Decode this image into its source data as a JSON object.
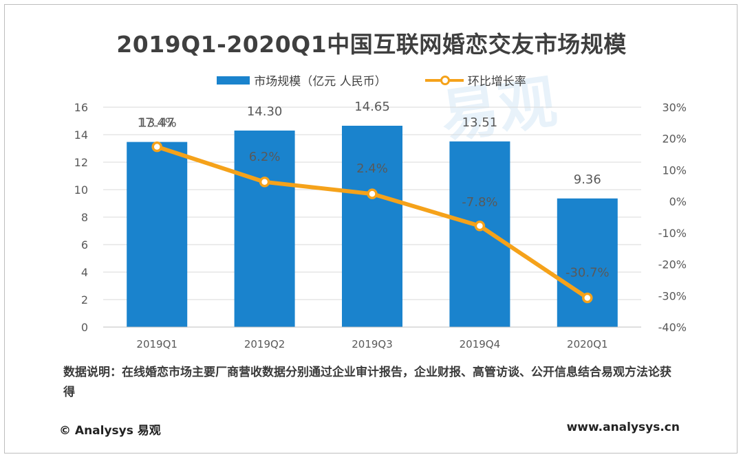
{
  "watermark": "易观",
  "chart_data": {
    "type": "bar",
    "title": "2019Q1-2020Q1中国互联网婚恋交友市场规模",
    "categories": [
      "2019Q1",
      "2019Q2",
      "2019Q3",
      "2019Q4",
      "2020Q1"
    ],
    "series": [
      {
        "name": "市场规模（亿元 人民币）",
        "type": "bar",
        "axis": "left",
        "color": "#1a83cd",
        "values": [
          13.47,
          14.3,
          14.65,
          13.51,
          9.36
        ],
        "labels": [
          "13.47",
          "14.30",
          "14.65",
          "13.51",
          "9.36"
        ]
      },
      {
        "name": "环比增长率",
        "type": "line",
        "axis": "right",
        "color": "#f5a21a",
        "values": [
          17.4,
          6.2,
          2.4,
          -7.8,
          -30.7
        ],
        "labels": [
          "17.4%",
          "6.2%",
          "2.4%",
          "-7.8%",
          "-30.7%"
        ]
      }
    ],
    "y_left": {
      "ylim": [
        0,
        16
      ],
      "ticks": [
        "0",
        "2",
        "4",
        "6",
        "8",
        "10",
        "12",
        "14",
        "16"
      ]
    },
    "y_right": {
      "ylim": [
        -40,
        30
      ],
      "ticks": [
        "-40%",
        "-30%",
        "-20%",
        "-10%",
        "0%",
        "10%",
        "20%",
        "30%"
      ]
    },
    "grid": true,
    "legend": "top-center"
  },
  "note": "数据说明：在线婚恋市场主要厂商营收数据分别通过企业审计报告，企业财报、高管访谈、公开信息结合易观方法论获得",
  "footer": {
    "copyright": "© Analysys 易观",
    "url": "www.analysys.cn"
  }
}
